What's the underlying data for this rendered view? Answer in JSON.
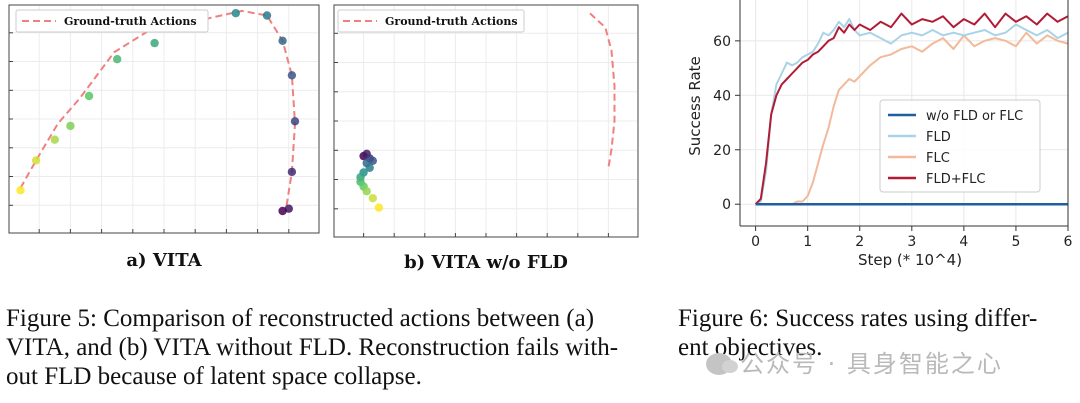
{
  "figure5": {
    "panel_a": {
      "legend": "Ground-truth Actions",
      "label": "a) VITA"
    },
    "panel_b": {
      "legend": "Ground-truth Actions",
      "label": "b) VITA w/o FLD"
    },
    "caption": [
      "Figure 5: Comparison of reconstructed actions between (a)",
      "VITA, and (b) VITA without FLD. Reconstruction fails with-",
      "out FLD because of latent space collapse."
    ]
  },
  "figure6": {
    "caption": [
      "Figure 6: Success rates using differ-",
      "ent objectives."
    ]
  },
  "watermark": "公众号 · 具身智能之心",
  "colors": {
    "gt": "#f08080",
    "wo": "#1f5fa0",
    "fld": "#a9d3e6",
    "flc": "#f2b99a",
    "both": "#b01c36"
  },
  "chart_data": [
    {
      "type": "scatter",
      "title": "a) VITA",
      "legend": [
        "Ground-truth Actions"
      ],
      "ground_truth": {
        "x": [
          0.04,
          0.09,
          0.16,
          0.23,
          0.34,
          0.47,
          0.57,
          0.65,
          0.75,
          0.83,
          0.88,
          0.91,
          0.92,
          0.91,
          0.89
        ],
        "y": [
          0.8,
          0.68,
          0.52,
          0.41,
          0.21,
          0.1,
          0.09,
          0.06,
          0.03,
          0.05,
          0.16,
          0.31,
          0.52,
          0.73,
          0.9
        ]
      },
      "reconstructed": {
        "x": [
          0.04,
          0.09,
          0.15,
          0.2,
          0.26,
          0.35,
          0.47,
          0.62,
          0.73,
          0.83,
          0.88,
          0.91,
          0.92,
          0.91,
          0.9,
          0.88
        ],
        "y": [
          0.81,
          0.68,
          0.59,
          0.53,
          0.4,
          0.24,
          0.17,
          0.08,
          0.04,
          0.05,
          0.16,
          0.31,
          0.51,
          0.73,
          0.89,
          0.9
        ]
      }
    },
    {
      "type": "scatter",
      "title": "b) VITA w/o FLD",
      "legend": [
        "Ground-truth Actions"
      ],
      "ground_truth": {
        "x": [
          0.84,
          0.89,
          0.91,
          0.92,
          0.92,
          0.91,
          0.9
        ],
        "y": [
          0.04,
          0.1,
          0.2,
          0.35,
          0.5,
          0.62,
          0.7
        ]
      },
      "reconstructed": {
        "x": [
          0.1,
          0.11,
          0.12,
          0.13,
          0.11,
          0.12,
          0.1,
          0.09,
          0.09,
          0.1,
          0.11,
          0.13,
          0.15
        ],
        "y": [
          0.65,
          0.64,
          0.66,
          0.67,
          0.68,
          0.7,
          0.72,
          0.74,
          0.76,
          0.78,
          0.8,
          0.83,
          0.87
        ]
      }
    },
    {
      "type": "line",
      "xlabel": "Step (* 10^4)",
      "ylabel": "Success Rate",
      "xlim": [
        -0.3,
        6.0
      ],
      "ylim": [
        -8,
        75
      ],
      "xticks": [
        0,
        1,
        2,
        3,
        4,
        5,
        6
      ],
      "yticks": [
        0,
        20,
        40,
        60
      ],
      "grid": true,
      "legend_position": "center-right",
      "series": [
        {
          "name": "w/o FLD or FLC",
          "x": [
            0,
            6
          ],
          "y": [
            0,
            0
          ]
        },
        {
          "name": "FLD",
          "x": [
            0,
            0.1,
            0.2,
            0.3,
            0.4,
            0.5,
            0.6,
            0.7,
            0.8,
            0.9,
            1.0,
            1.1,
            1.2,
            1.3,
            1.4,
            1.5,
            1.6,
            1.7,
            1.8,
            1.9,
            2.0,
            2.2,
            2.4,
            2.6,
            2.8,
            3.0,
            3.2,
            3.4,
            3.6,
            3.8,
            4.0,
            4.2,
            4.4,
            4.6,
            4.8,
            5.0,
            5.2,
            5.4,
            5.6,
            5.8,
            6.0
          ],
          "y": [
            0,
            1,
            12,
            33,
            44,
            48,
            52,
            51,
            52,
            54,
            55,
            56,
            59,
            63,
            62,
            64,
            67,
            65,
            68,
            64,
            62,
            63,
            61,
            59,
            62,
            63,
            62,
            64,
            62,
            63,
            62,
            63,
            64,
            62,
            63,
            66,
            64,
            62,
            64,
            61,
            63
          ]
        },
        {
          "name": "FLC",
          "x": [
            0,
            0.2,
            0.4,
            0.6,
            0.7,
            0.8,
            0.9,
            1.0,
            1.1,
            1.2,
            1.3,
            1.4,
            1.5,
            1.6,
            1.7,
            1.8,
            1.9,
            2.0,
            2.2,
            2.4,
            2.6,
            2.8,
            3.0,
            3.2,
            3.4,
            3.6,
            3.8,
            4.0,
            4.2,
            4.4,
            4.6,
            4.8,
            5.0,
            5.2,
            5.4,
            5.6,
            5.8,
            6.0
          ],
          "y": [
            0,
            0,
            0,
            0,
            0,
            1,
            1,
            3,
            8,
            15,
            22,
            28,
            36,
            42,
            44,
            46,
            45,
            47,
            51,
            54,
            55,
            57,
            58,
            56,
            59,
            61,
            57,
            62,
            58,
            60,
            61,
            60,
            58,
            63,
            59,
            62,
            60,
            59
          ]
        },
        {
          "name": "FLD+FLC",
          "x": [
            0,
            0.1,
            0.2,
            0.3,
            0.4,
            0.5,
            0.6,
            0.7,
            0.8,
            0.9,
            1.0,
            1.1,
            1.2,
            1.3,
            1.4,
            1.5,
            1.6,
            1.7,
            1.8,
            1.9,
            2.0,
            2.2,
            2.4,
            2.6,
            2.8,
            3.0,
            3.2,
            3.4,
            3.6,
            3.8,
            4.0,
            4.2,
            4.4,
            4.6,
            4.8,
            5.0,
            5.2,
            5.4,
            5.6,
            5.8,
            6.0
          ],
          "y": [
            0,
            2,
            15,
            33,
            40,
            44,
            46,
            48,
            50,
            52,
            53,
            55,
            56,
            58,
            60,
            61,
            65,
            63,
            66,
            64,
            66,
            64,
            67,
            65,
            70,
            66,
            68,
            67,
            69,
            65,
            68,
            66,
            70,
            65,
            70,
            67,
            69,
            66,
            70,
            67,
            69
          ]
        }
      ]
    }
  ]
}
